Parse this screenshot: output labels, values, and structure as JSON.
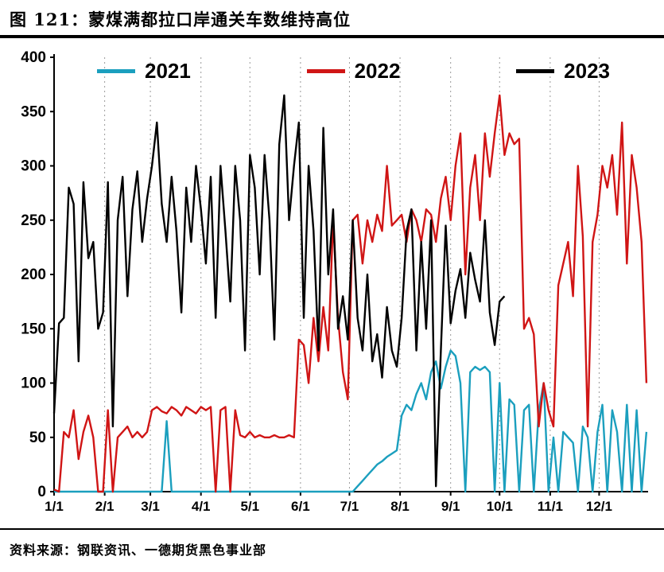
{
  "title": {
    "text": "图 121：蒙煤满都拉口岸通关车数维持高位"
  },
  "source": {
    "text": "资料来源：钢联资讯、一德期货黑色事业部"
  },
  "chart_data": {
    "type": "line",
    "title": "蒙煤满都拉口岸通关车数维持高位",
    "xlabel": "",
    "ylabel": "",
    "ylim": [
      0,
      400
    ],
    "ytick_step": 50,
    "grid": "vertical-dotted",
    "legend_position": "top",
    "x": {
      "unit": "day-of-year",
      "step_days": 3,
      "max_day": 364,
      "tick_days": [
        0,
        31,
        59,
        90,
        120,
        151,
        181,
        212,
        243,
        273,
        304,
        334
      ],
      "tick_labels": [
        "1/1",
        "2/1",
        "3/1",
        "4/1",
        "5/1",
        "6/1",
        "7/1",
        "8/1",
        "9/1",
        "10/1",
        "11/1",
        "12/1"
      ]
    },
    "series": [
      {
        "name": "2021",
        "color": "#1B9FBE",
        "values": [
          0,
          0,
          0,
          0,
          0,
          0,
          0,
          0,
          0,
          0,
          0,
          0,
          0,
          0,
          0,
          0,
          0,
          0,
          0,
          0,
          0,
          0,
          0,
          65,
          0,
          0,
          0,
          0,
          0,
          0,
          0,
          0,
          0,
          0,
          0,
          0,
          0,
          0,
          0,
          0,
          0,
          0,
          0,
          0,
          0,
          0,
          0,
          0,
          0,
          0,
          0,
          0,
          0,
          0,
          0,
          0,
          0,
          0,
          0,
          0,
          0,
          0,
          5,
          10,
          15,
          20,
          25,
          28,
          32,
          35,
          38,
          70,
          80,
          75,
          90,
          100,
          85,
          110,
          120,
          95,
          115,
          130,
          125,
          100,
          0,
          110,
          115,
          112,
          115,
          110,
          0,
          100,
          0,
          85,
          80,
          0,
          75,
          80,
          0,
          75,
          100,
          0,
          50,
          0,
          55,
          50,
          45,
          0,
          60,
          50,
          0,
          55,
          80,
          0,
          75,
          55,
          0,
          80,
          0,
          75,
          0,
          55
        ]
      },
      {
        "name": "2022",
        "color": "#D01515",
        "values": [
          2,
          0,
          55,
          50,
          75,
          30,
          55,
          70,
          50,
          0,
          0,
          75,
          0,
          50,
          55,
          60,
          50,
          55,
          50,
          55,
          75,
          78,
          74,
          72,
          78,
          75,
          70,
          78,
          75,
          72,
          78,
          75,
          78,
          0,
          75,
          78,
          0,
          75,
          52,
          50,
          55,
          50,
          52,
          50,
          50,
          52,
          50,
          50,
          52,
          50,
          140,
          135,
          100,
          160,
          120,
          170,
          130,
          250,
          160,
          110,
          85,
          250,
          255,
          210,
          250,
          230,
          255,
          240,
          300,
          245,
          250,
          255,
          230,
          260,
          250,
          230,
          260,
          255,
          230,
          270,
          290,
          250,
          300,
          330,
          200,
          280,
          310,
          250,
          330,
          290,
          330,
          365,
          310,
          330,
          320,
          325,
          150,
          160,
          145,
          60,
          100,
          75,
          60,
          190,
          210,
          230,
          180,
          300,
          235,
          60,
          230,
          255,
          300,
          280,
          310,
          255,
          340,
          210,
          310,
          280,
          230,
          100
        ]
      },
      {
        "name": "2023",
        "color": "#000000",
        "values": [
          72,
          155,
          160,
          280,
          265,
          120,
          285,
          215,
          230,
          150,
          165,
          285,
          60,
          250,
          290,
          180,
          260,
          295,
          230,
          270,
          300,
          340,
          265,
          230,
          290,
          240,
          165,
          280,
          230,
          300,
          260,
          210,
          290,
          160,
          300,
          240,
          175,
          300,
          250,
          130,
          310,
          280,
          200,
          310,
          250,
          140,
          320,
          365,
          250,
          300,
          340,
          160,
          300,
          240,
          130,
          335,
          200,
          260,
          150,
          180,
          140,
          250,
          160,
          130,
          200,
          120,
          145,
          105,
          170,
          130,
          115,
          160,
          240,
          260,
          130,
          230,
          150,
          250,
          5,
          130,
          245,
          155,
          185,
          205,
          160,
          220,
          195,
          175,
          250,
          165,
          135,
          175,
          180
        ]
      }
    ]
  }
}
